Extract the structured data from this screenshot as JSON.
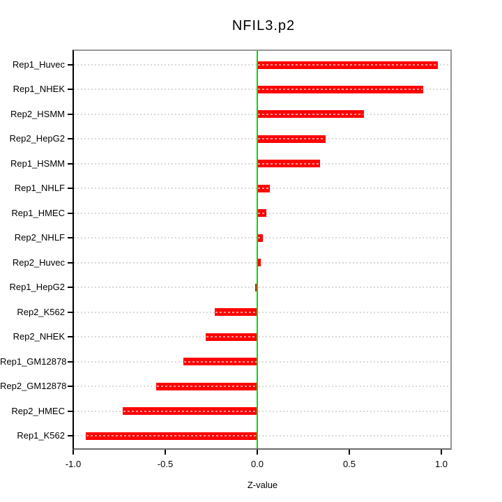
{
  "window": {
    "background": "#ffffff"
  },
  "chart_data": {
    "type": "bar",
    "orientation": "horizontal",
    "title": "NFIL3.p2",
    "xlabel": "Z-value",
    "ylabel": "",
    "categories": [
      "Rep1_Huvec",
      "Rep1_NHEK",
      "Rep2_HSMM",
      "Rep2_HepG2",
      "Rep1_HSMM",
      "Rep1_NHLF",
      "Rep1_HMEC",
      "Rep2_NHLF",
      "Rep2_Huvec",
      "Rep1_HepG2",
      "Rep2_K562",
      "Rep2_NHEK",
      "Rep1_GM12878",
      "Rep2_GM12878",
      "Rep2_HMEC",
      "Rep1_K562"
    ],
    "values": [
      0.98,
      0.9,
      0.58,
      0.37,
      0.34,
      0.07,
      0.05,
      0.03,
      0.02,
      -0.01,
      -0.23,
      -0.28,
      -0.4,
      -0.55,
      -0.73,
      -0.93
    ],
    "xlim": [
      -1.0,
      1.06
    ],
    "xticks": [
      -1.0,
      -0.5,
      0.0,
      0.5,
      1.0
    ],
    "xtick_labels": [
      "-1.0",
      "-0.5",
      "0.0",
      "0.5",
      "1.0"
    ],
    "grid": "horizontal-dashed-per-category",
    "legend": "none",
    "zero_line": 0,
    "colors": {
      "bar": "#ff0000",
      "bar_dash_overlay": "rgba(255,255,255,0.6)",
      "zero_line": "#00dd00",
      "grid": "#d8d8d8",
      "axis": "#000000",
      "box_border": "#909090",
      "text": "#000000",
      "background": "#ffffff"
    }
  }
}
